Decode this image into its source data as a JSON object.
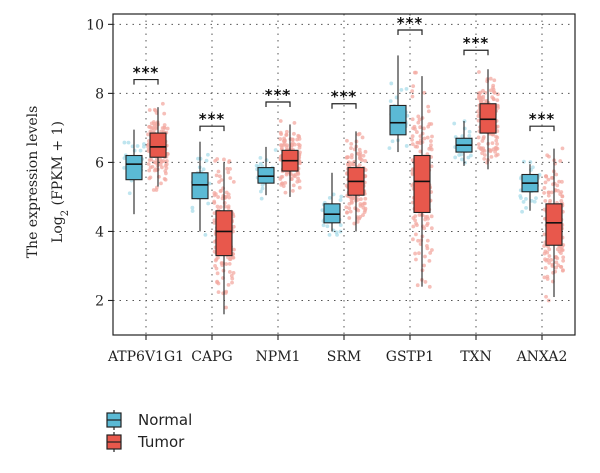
{
  "chart_data": {
    "type": "box",
    "ylabel_line1": "The expression levels",
    "ylabel_line2_prefix": "Log",
    "ylabel_line2_sub": "2",
    "ylabel_line2_suffix": " (FPKM + 1)",
    "ylim": [
      1,
      10.3
    ],
    "yticks": [
      2,
      4,
      6,
      8,
      10
    ],
    "grid": "dotted",
    "categories": [
      "ATP6V1G1",
      "CAPG",
      "NPM1",
      "SRM",
      "GSTP1",
      "TXN",
      "ANXA2"
    ],
    "significance": [
      "***",
      "***",
      "***",
      "***",
      "***",
      "***",
      "***"
    ],
    "sig_y": [
      8.4,
      7.05,
      7.75,
      7.7,
      10.85,
      9.25,
      7.05
    ],
    "colors": {
      "Normal": "#5bbad5",
      "Tumor": "#e8584c"
    },
    "series": [
      {
        "name": "Normal",
        "boxes": [
          {
            "min": 4.5,
            "q1": 5.5,
            "median": 5.95,
            "q3": 6.2,
            "max": 6.95
          },
          {
            "min": 4.0,
            "q1": 4.95,
            "median": 5.35,
            "q3": 5.7,
            "max": 6.6
          },
          {
            "min": 5.05,
            "q1": 5.4,
            "median": 5.6,
            "q3": 5.85,
            "max": 6.45
          },
          {
            "min": 4.0,
            "q1": 4.25,
            "median": 4.5,
            "q3": 4.8,
            "max": 5.7
          },
          {
            "min": 6.3,
            "q1": 6.8,
            "median": 7.15,
            "q3": 7.65,
            "max": 9.1
          },
          {
            "min": 5.9,
            "q1": 6.3,
            "median": 6.5,
            "q3": 6.7,
            "max": 7.2
          },
          {
            "min": 4.6,
            "q1": 5.15,
            "median": 5.4,
            "q3": 5.65,
            "max": 5.95
          }
        ]
      },
      {
        "name": "Tumor",
        "boxes": [
          {
            "min": 5.3,
            "q1": 6.15,
            "median": 6.45,
            "q3": 6.85,
            "max": 7.6
          },
          {
            "min": 1.6,
            "q1": 3.3,
            "median": 4.0,
            "q3": 4.6,
            "max": 6.0
          },
          {
            "min": 5.0,
            "q1": 5.75,
            "median": 6.05,
            "q3": 6.35,
            "max": 7.1
          },
          {
            "min": 4.0,
            "q1": 5.05,
            "median": 5.45,
            "q3": 5.85,
            "max": 6.9
          },
          {
            "min": 2.4,
            "q1": 4.55,
            "median": 5.45,
            "q3": 6.2,
            "max": 8.5
          },
          {
            "min": 5.8,
            "q1": 6.85,
            "median": 7.25,
            "q3": 7.7,
            "max": 8.7
          },
          {
            "min": 2.1,
            "q1": 3.6,
            "median": 4.25,
            "q3": 4.8,
            "max": 6.4
          }
        ]
      }
    ],
    "legend": {
      "position": "bottom-left",
      "entries": [
        "Normal",
        "Tumor"
      ]
    }
  }
}
